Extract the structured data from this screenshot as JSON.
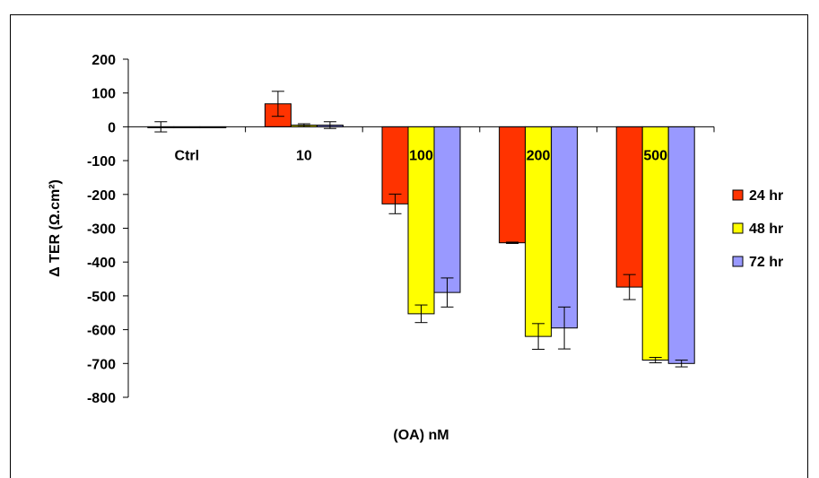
{
  "chart_data": {
    "type": "bar",
    "categories": [
      "Ctrl",
      "10",
      "100",
      "200",
      "500"
    ],
    "series": [
      {
        "name": "24 hr",
        "color": "#ff3300",
        "values": [
          0,
          68,
          -228,
          -343,
          -474
        ],
        "errors": [
          15,
          37,
          29,
          2,
          37
        ]
      },
      {
        "name": "48 hr",
        "color": "#ffff00",
        "values": [
          0,
          5,
          -553,
          -620,
          -690
        ],
        "errors": [
          0,
          4,
          26,
          38,
          8
        ]
      },
      {
        "name": "72 hr",
        "color": "#9999ff",
        "values": [
          0,
          5,
          -490,
          -595,
          -700
        ],
        "errors": [
          0,
          10,
          43,
          62,
          10
        ]
      }
    ],
    "title": "",
    "xlabel": "(OA) nM",
    "ylabel": "Δ TER (Ω.cm²)",
    "ylim": [
      -800,
      200
    ],
    "yticks": [
      200,
      100,
      0,
      -100,
      -200,
      -300,
      -400,
      -500,
      -600,
      -700,
      -800
    ],
    "grid": false,
    "legend_position": "right"
  }
}
